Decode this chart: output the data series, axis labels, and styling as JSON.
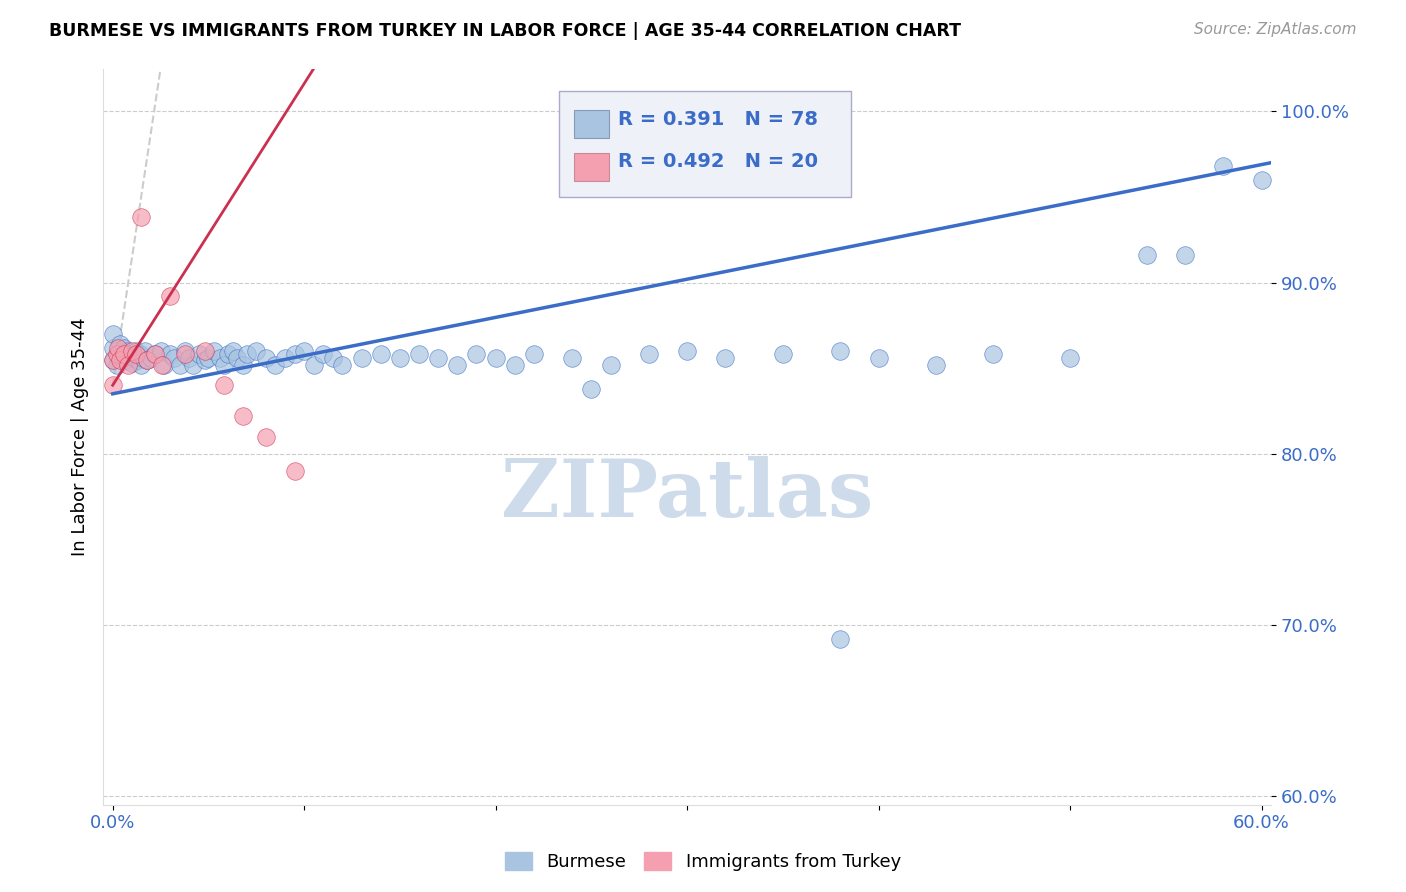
{
  "title": "BURMESE VS IMMIGRANTS FROM TURKEY IN LABOR FORCE | AGE 35-44 CORRELATION CHART",
  "source": "Source: ZipAtlas.com",
  "ylabel": "In Labor Force | Age 35-44",
  "blue_R": 0.391,
  "blue_N": 78,
  "pink_R": 0.492,
  "pink_N": 20,
  "blue_color": "#a8c4e0",
  "pink_color": "#f4a0b0",
  "blue_line_color": "#3a6cc8",
  "pink_line_color": "#cc3050",
  "pink_dashed_color": "#cccccc",
  "watermark_color": "#c8d8e8",
  "xlim": [
    -0.005,
    0.605
  ],
  "ylim": [
    0.595,
    1.025
  ],
  "y_ticks": [
    0.6,
    0.7,
    0.8,
    0.9,
    1.0
  ],
  "y_tick_labels": [
    "60.0%",
    "70.0%",
    "80.0%",
    "90.0%",
    "100.0%"
  ],
  "x_ticks": [
    0.0,
    0.1,
    0.2,
    0.3,
    0.4,
    0.5,
    0.6
  ],
  "x_tick_labels": [
    "0.0%",
    "",
    "",
    "",
    "",
    "",
    "60.0%"
  ],
  "blue_scatter_x": [
    0.0,
    0.0,
    0.0,
    0.002,
    0.003,
    0.004,
    0.005,
    0.006,
    0.007,
    0.008,
    0.009,
    0.01,
    0.011,
    0.012,
    0.013,
    0.014,
    0.015,
    0.016,
    0.017,
    0.018,
    0.02,
    0.022,
    0.025,
    0.027,
    0.03,
    0.032,
    0.035,
    0.038,
    0.04,
    0.042,
    0.045,
    0.048,
    0.05,
    0.053,
    0.056,
    0.058,
    0.06,
    0.063,
    0.065,
    0.068,
    0.07,
    0.075,
    0.08,
    0.085,
    0.09,
    0.095,
    0.1,
    0.105,
    0.11,
    0.115,
    0.12,
    0.13,
    0.14,
    0.15,
    0.16,
    0.17,
    0.18,
    0.19,
    0.2,
    0.21,
    0.22,
    0.24,
    0.26,
    0.28,
    0.3,
    0.32,
    0.35,
    0.38,
    0.4,
    0.43,
    0.46,
    0.5,
    0.54,
    0.56,
    0.58,
    0.6,
    0.38,
    0.25
  ],
  "blue_scatter_y": [
    0.855,
    0.862,
    0.87,
    0.852,
    0.858,
    0.864,
    0.856,
    0.862,
    0.855,
    0.86,
    0.858,
    0.853,
    0.856,
    0.86,
    0.855,
    0.858,
    0.852,
    0.856,
    0.86,
    0.855,
    0.856,
    0.858,
    0.86,
    0.852,
    0.858,
    0.856,
    0.852,
    0.86,
    0.856,
    0.852,
    0.858,
    0.855,
    0.856,
    0.86,
    0.856,
    0.852,
    0.858,
    0.86,
    0.856,
    0.852,
    0.858,
    0.86,
    0.856,
    0.852,
    0.856,
    0.858,
    0.86,
    0.852,
    0.858,
    0.856,
    0.852,
    0.856,
    0.858,
    0.856,
    0.858,
    0.856,
    0.852,
    0.858,
    0.856,
    0.852,
    0.858,
    0.856,
    0.852,
    0.858,
    0.86,
    0.856,
    0.858,
    0.86,
    0.856,
    0.852,
    0.858,
    0.856,
    0.916,
    0.916,
    0.968,
    0.96,
    0.692,
    0.838
  ],
  "pink_scatter_x": [
    0.0,
    0.0,
    0.002,
    0.003,
    0.004,
    0.006,
    0.008,
    0.01,
    0.012,
    0.015,
    0.018,
    0.022,
    0.026,
    0.03,
    0.038,
    0.048,
    0.058,
    0.068,
    0.08,
    0.095
  ],
  "pink_scatter_y": [
    0.855,
    0.84,
    0.858,
    0.862,
    0.855,
    0.858,
    0.852,
    0.86,
    0.858,
    0.938,
    0.855,
    0.858,
    0.852,
    0.892,
    0.858,
    0.86,
    0.84,
    0.822,
    0.81,
    0.79
  ]
}
